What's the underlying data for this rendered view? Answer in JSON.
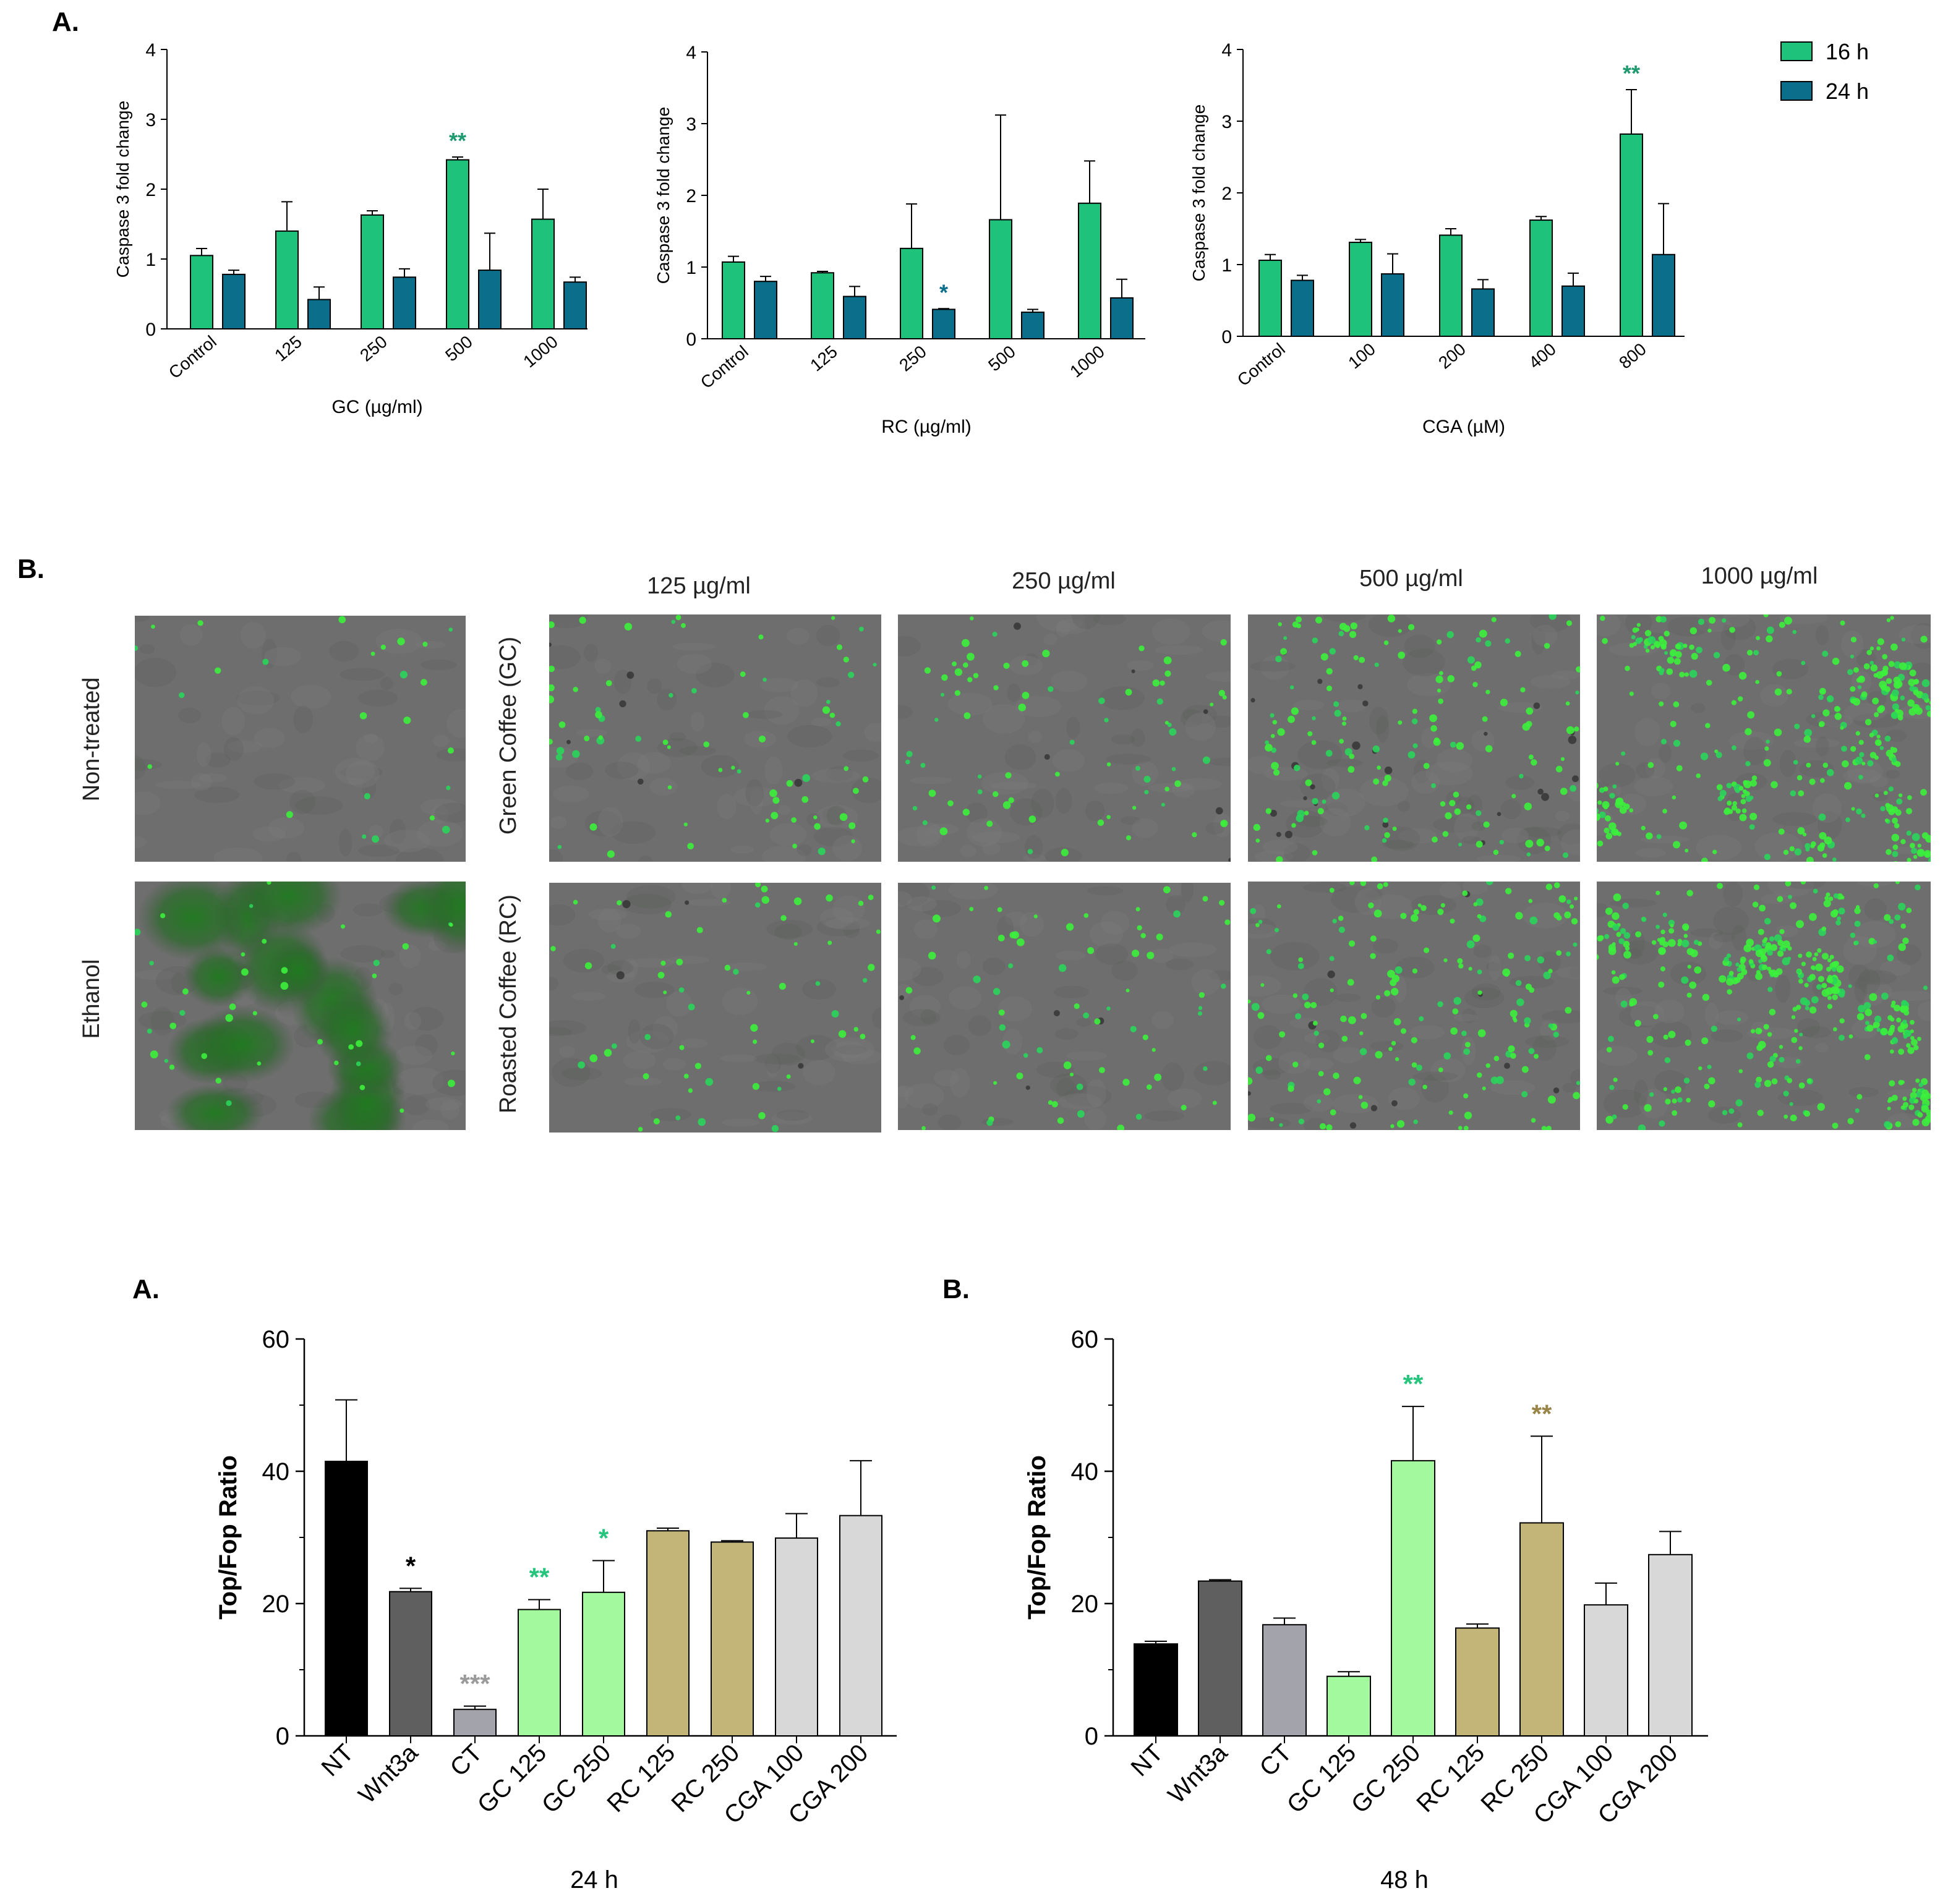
{
  "colors": {
    "green_16h": "#1ec27a",
    "teal_24h": "#0b6f8c",
    "black": "#000000",
    "dark_gray": "#5f5f5f",
    "mid_gray": "#a3a3ab",
    "light_green": "#a3fa9e",
    "khaki": "#c2b577",
    "light_gray": "#d8d8d8",
    "sig_green": "#1e9a6e",
    "sig_teal": "#0b6f8c",
    "sig_gray": "#9a9a9a",
    "sig_bright_green": "#27c47e",
    "sig_khaki": "#9a8548"
  },
  "panel_labels": {
    "top_a": "A.",
    "top_b": "B.",
    "bottom_a": "A.",
    "bottom_b": "B."
  },
  "legend": {
    "items": [
      "16 h",
      "24 h"
    ]
  },
  "micrographs": {
    "columns": [
      "125 µg/ml",
      "250 µg/ml",
      "500 µg/ml",
      "1000 µg/ml"
    ],
    "left_rows": [
      "Non-treated",
      "Ethanol"
    ],
    "right_rows": [
      "Green Coffee (GC)",
      "Roasted Coffee (RC)"
    ]
  },
  "chart_data": [
    {
      "type": "bar",
      "xlabel": "GC  (µg/ml)",
      "ylabel": "Caspase 3 fold change",
      "ylim": [
        0,
        4
      ],
      "yticks": [
        "0",
        "1",
        "2",
        "3",
        "4"
      ],
      "categories": [
        "Control",
        "125",
        "250",
        "500",
        "1000"
      ],
      "series": [
        {
          "name": "16 h",
          "values": [
            1.05,
            1.4,
            1.63,
            2.42,
            1.57
          ],
          "errors": [
            0.1,
            0.42,
            0.06,
            0.04,
            0.43
          ]
        },
        {
          "name": "24 h",
          "values": [
            0.78,
            0.42,
            0.74,
            0.84,
            0.67
          ],
          "errors": [
            0.06,
            0.18,
            0.12,
            0.53,
            0.07
          ]
        }
      ],
      "annotations": [
        {
          "category": "500",
          "series": "16 h",
          "text": "**"
        }
      ]
    },
    {
      "type": "bar",
      "xlabel": "RC (µg/ml)",
      "ylabel": "Caspase 3 fold change",
      "ylim": [
        0,
        4
      ],
      "yticks": [
        "0",
        "1",
        "2",
        "3",
        "4"
      ],
      "categories": [
        "Control",
        "125",
        "250",
        "500",
        "1000"
      ],
      "series": [
        {
          "name": "16 h",
          "values": [
            1.07,
            0.92,
            1.26,
            1.66,
            1.89
          ],
          "errors": [
            0.08,
            0.02,
            0.62,
            1.46,
            0.59
          ]
        },
        {
          "name": "24 h",
          "values": [
            0.8,
            0.59,
            0.41,
            0.37,
            0.57
          ],
          "errors": [
            0.07,
            0.14,
            0.01,
            0.04,
            0.26
          ]
        }
      ],
      "annotations": [
        {
          "category": "250",
          "series": "24 h",
          "text": "*"
        }
      ]
    },
    {
      "type": "bar",
      "xlabel": "CGA (µM)",
      "ylabel": "Caspase 3 fold change",
      "ylim": [
        0,
        4
      ],
      "yticks": [
        "0",
        "1",
        "2",
        "3",
        "4"
      ],
      "categories": [
        "Control",
        "100",
        "200",
        "400",
        "800"
      ],
      "series": [
        {
          "name": "16 h",
          "values": [
            1.06,
            1.31,
            1.41,
            1.62,
            2.82
          ],
          "errors": [
            0.08,
            0.04,
            0.09,
            0.05,
            0.62
          ]
        },
        {
          "name": "24 h",
          "values": [
            0.78,
            0.87,
            0.66,
            0.7,
            1.14
          ],
          "errors": [
            0.07,
            0.28,
            0.13,
            0.18,
            0.71
          ]
        }
      ],
      "annotations": [
        {
          "category": "800",
          "series": "16 h",
          "text": "**"
        }
      ]
    },
    {
      "type": "bar",
      "xlabel": "24 h",
      "ylabel": "Top/Fop Ratio",
      "ylim": [
        0,
        60
      ],
      "yticks": [
        "0",
        "20",
        "40",
        "60"
      ],
      "categories": [
        "NT",
        "Wnt3a",
        "CT",
        "GC 125",
        "GC 250",
        "RC 125",
        "RC 250",
        "CGA 100",
        "CGA 200"
      ],
      "values": [
        41.5,
        21.8,
        4.0,
        19.1,
        21.7,
        31.0,
        29.3,
        29.9,
        33.3
      ],
      "errors": [
        9.3,
        0.5,
        0.5,
        1.5,
        4.8,
        0.4,
        0.2,
        3.7,
        8.3
      ],
      "annotations": [
        {
          "category": "Wnt3a",
          "text": "*"
        },
        {
          "category": "CT",
          "text": "***"
        },
        {
          "category": "GC 125",
          "text": "**"
        },
        {
          "category": "GC 250",
          "text": "*"
        }
      ]
    },
    {
      "type": "bar",
      "xlabel": "48 h",
      "ylabel": "Top/Fop Ratio",
      "ylim": [
        0,
        60
      ],
      "yticks": [
        "0",
        "20",
        "40",
        "60"
      ],
      "categories": [
        "NT",
        "Wnt3a",
        "CT",
        "GC 125",
        "GC 250",
        "RC 125",
        "RC 250",
        "CGA 100",
        "CGA 200"
      ],
      "values": [
        13.9,
        23.4,
        16.8,
        9.0,
        41.6,
        16.3,
        32.2,
        19.8,
        27.4
      ],
      "errors": [
        0.4,
        0.2,
        1.0,
        0.7,
        8.2,
        0.6,
        13.1,
        3.3,
        3.5
      ],
      "annotations": [
        {
          "category": "GC 250",
          "text": "**"
        },
        {
          "category": "RC 250",
          "text": "**"
        }
      ]
    }
  ]
}
